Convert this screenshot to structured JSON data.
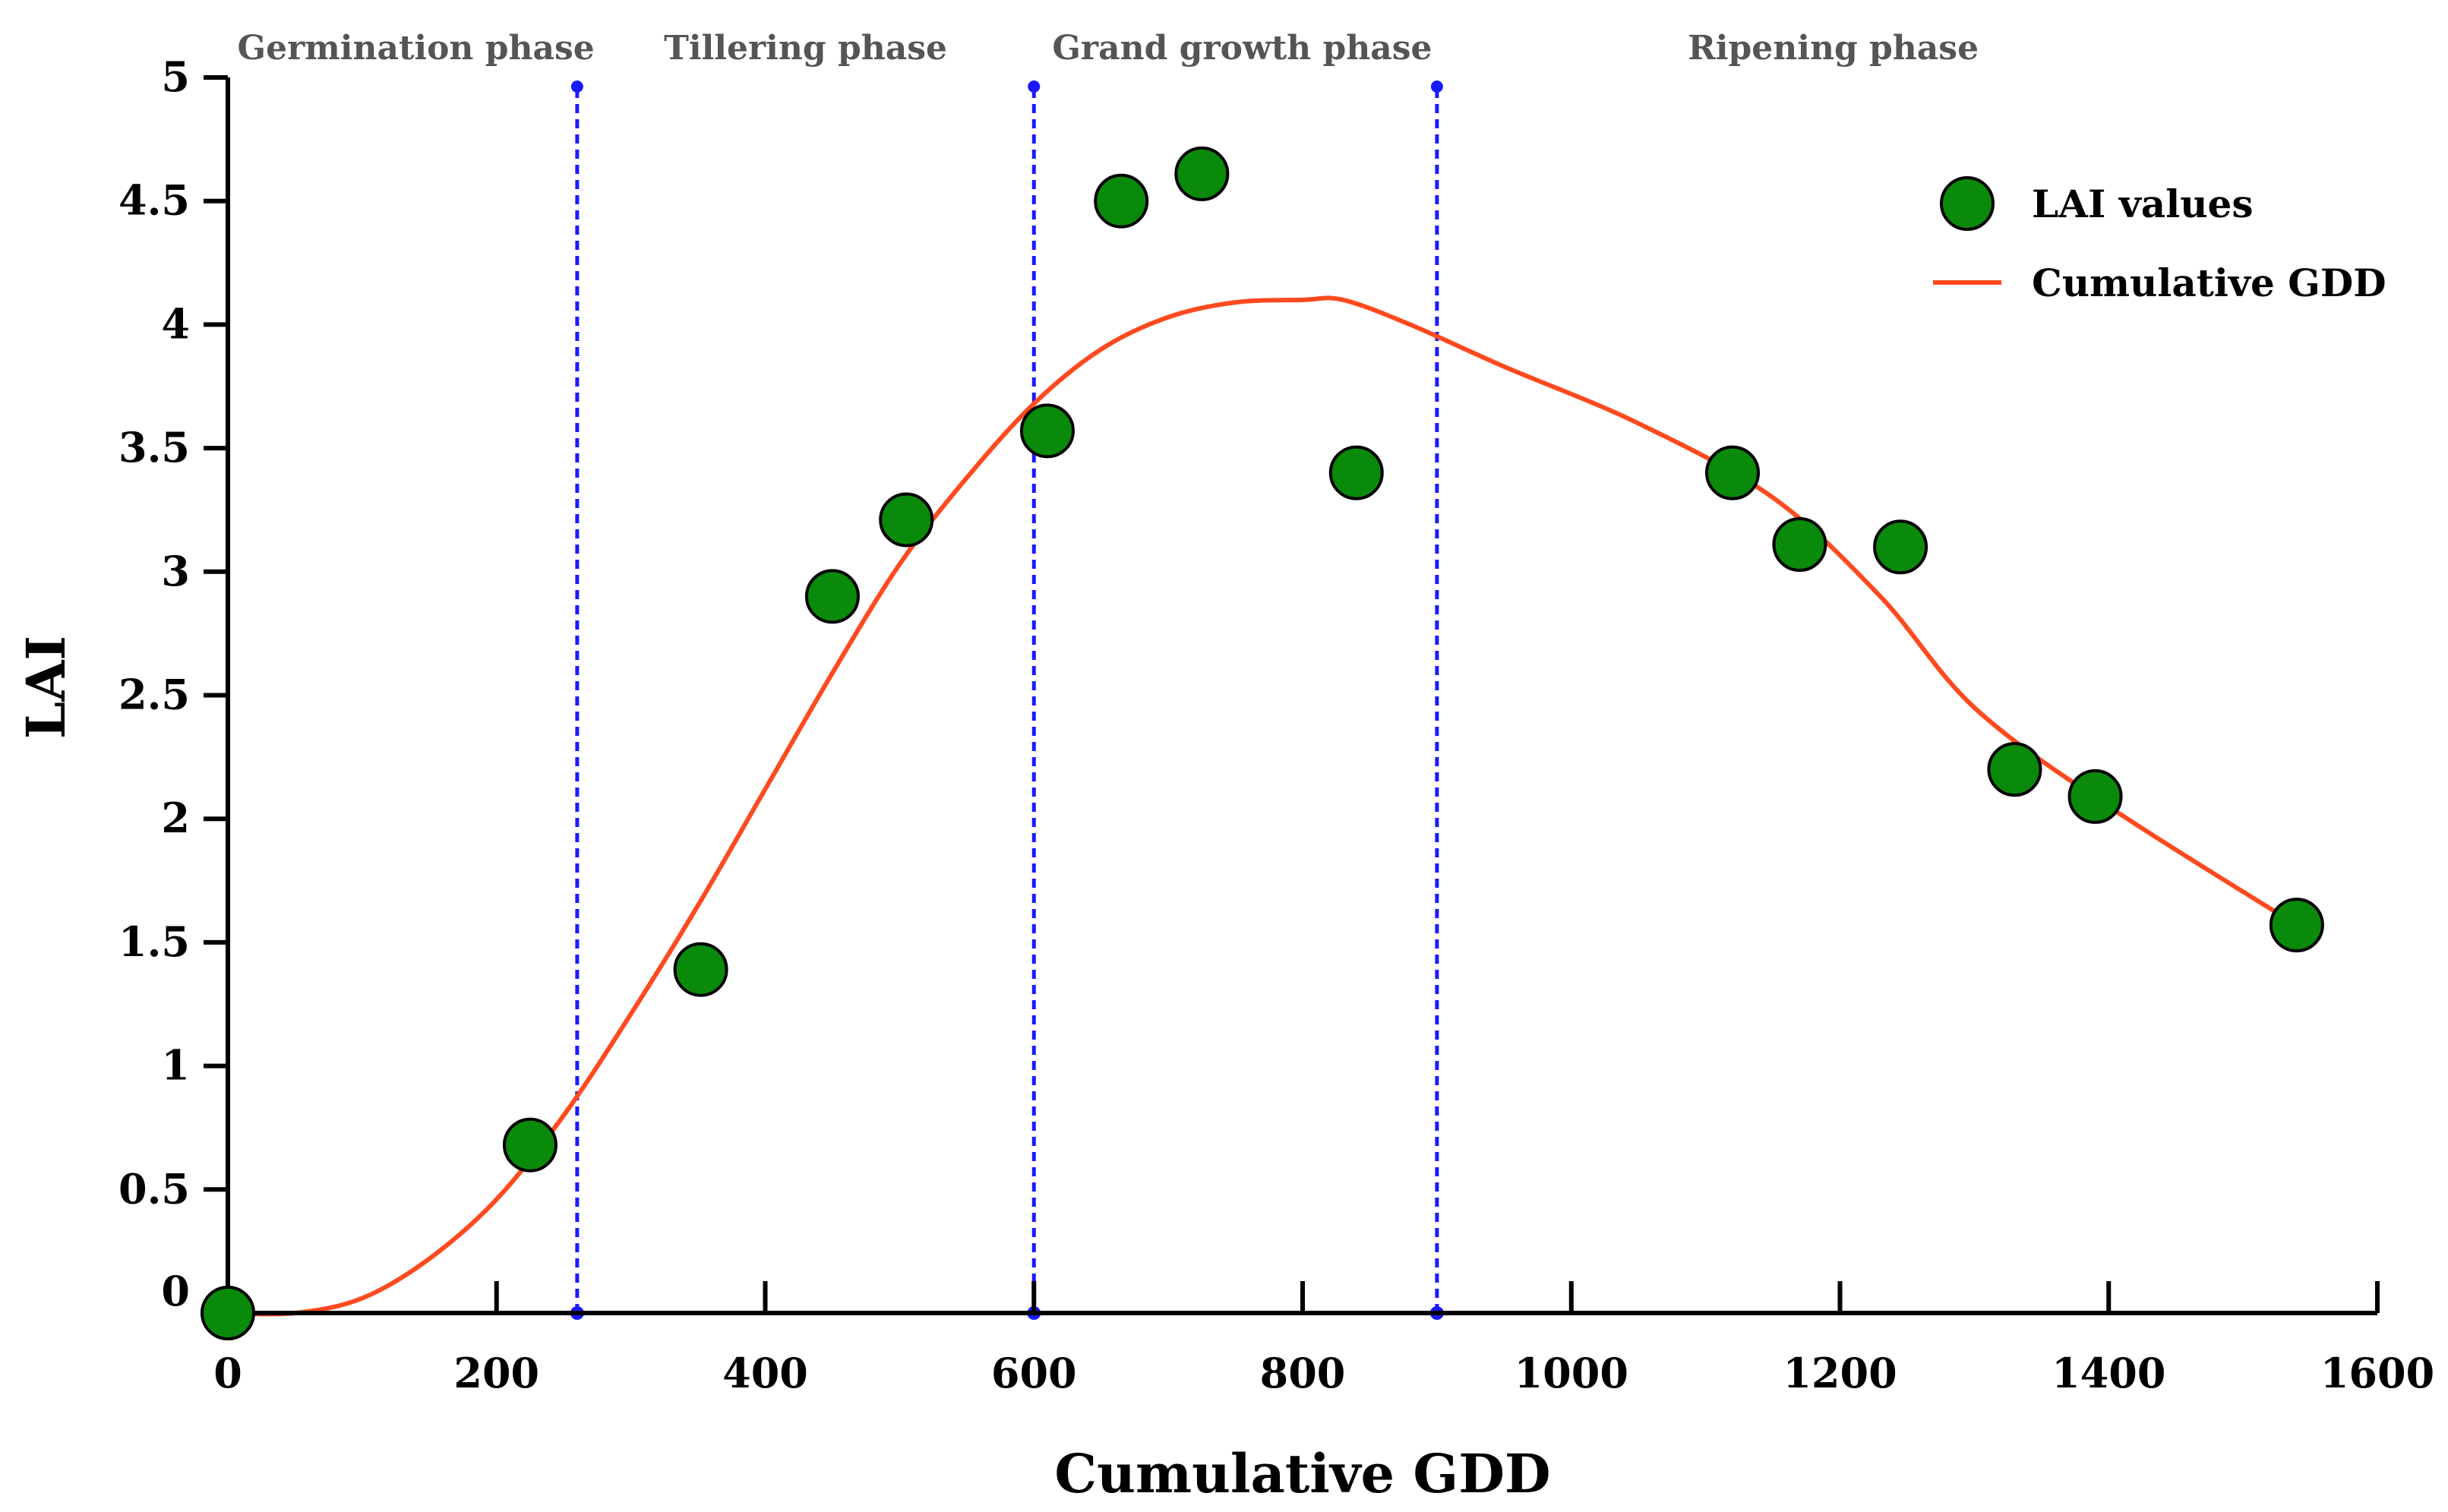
{
  "chart_data": {
    "type": "scatter",
    "title": "",
    "xlabel": "Cumulative GDD",
    "ylabel": "LAI",
    "xlim": [
      0,
      1600
    ],
    "ylim": [
      0,
      5
    ],
    "x_ticks": [
      0,
      200,
      400,
      600,
      800,
      1000,
      1200,
      1400,
      1600
    ],
    "y_ticks": [
      0,
      0.5,
      1,
      1.5,
      2,
      2.5,
      3,
      3.5,
      4,
      4.5,
      5
    ],
    "y_tick_labels": [
      "0",
      "0.5",
      "1",
      "1.5",
      "2",
      "2.5",
      "3",
      "3.5",
      "4",
      "4.5",
      "5"
    ],
    "grid": false,
    "legend_position": "top-right",
    "phase_boundaries": [
      260,
      600,
      900
    ],
    "phases": [
      {
        "label": "Germination phase",
        "center": 140
      },
      {
        "label": "Tillering phase",
        "center": 430
      },
      {
        "label": "Grand growth phase",
        "center": 755
      },
      {
        "label": "Ripening phase",
        "center": 1195
      }
    ],
    "series": [
      {
        "name": "LAI values",
        "kind": "scatter",
        "color": "#0a8a0a",
        "points": [
          {
            "x": 0,
            "y": 0.0
          },
          {
            "x": 225,
            "y": 0.68
          },
          {
            "x": 352,
            "y": 1.39
          },
          {
            "x": 450,
            "y": 2.9
          },
          {
            "x": 505,
            "y": 3.21
          },
          {
            "x": 610,
            "y": 3.57
          },
          {
            "x": 665,
            "y": 4.5
          },
          {
            "x": 725,
            "y": 4.61
          },
          {
            "x": 840,
            "y": 3.4
          },
          {
            "x": 1120,
            "y": 3.4
          },
          {
            "x": 1170,
            "y": 3.11
          },
          {
            "x": 1245,
            "y": 3.1
          },
          {
            "x": 1330,
            "y": 2.2
          },
          {
            "x": 1390,
            "y": 2.09
          },
          {
            "x": 1540,
            "y": 1.57
          }
        ]
      },
      {
        "name": "Cumulative GDD",
        "kind": "line",
        "color": "#ff4a1f",
        "points": [
          {
            "x": 0,
            "y": 0.0
          },
          {
            "x": 50,
            "y": 0.0
          },
          {
            "x": 100,
            "y": 0.06
          },
          {
            "x": 150,
            "y": 0.22
          },
          {
            "x": 200,
            "y": 0.46
          },
          {
            "x": 250,
            "y": 0.8
          },
          {
            "x": 300,
            "y": 1.21
          },
          {
            "x": 350,
            "y": 1.65
          },
          {
            "x": 400,
            "y": 2.12
          },
          {
            "x": 450,
            "y": 2.59
          },
          {
            "x": 500,
            "y": 3.03
          },
          {
            "x": 550,
            "y": 3.38
          },
          {
            "x": 600,
            "y": 3.68
          },
          {
            "x": 650,
            "y": 3.9
          },
          {
            "x": 700,
            "y": 4.03
          },
          {
            "x": 750,
            "y": 4.09
          },
          {
            "x": 800,
            "y": 4.1
          },
          {
            "x": 830,
            "y": 4.1
          },
          {
            "x": 880,
            "y": 4.0
          },
          {
            "x": 950,
            "y": 3.83
          },
          {
            "x": 1050,
            "y": 3.6
          },
          {
            "x": 1150,
            "y": 3.3
          },
          {
            "x": 1230,
            "y": 2.9
          },
          {
            "x": 1300,
            "y": 2.45
          },
          {
            "x": 1400,
            "y": 2.05
          },
          {
            "x": 1540,
            "y": 1.57
          }
        ]
      }
    ]
  }
}
